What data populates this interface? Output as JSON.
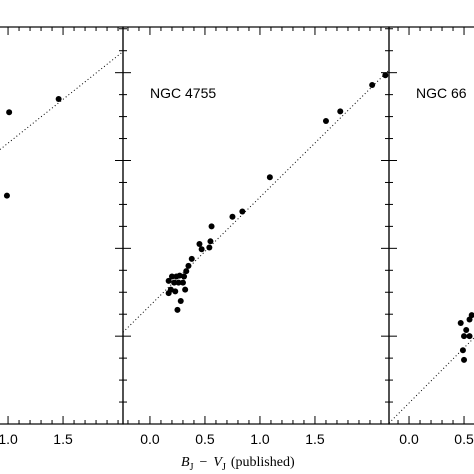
{
  "chart_data": [
    {
      "type": "scatter",
      "xlim": [
        -0.373,
        2.045
      ],
      "ylim": [
        -1,
        3.52
      ],
      "xticks": [
        {
          "value": 1,
          "label": "1.0"
        },
        {
          "value": 1.5,
          "label": "1.5"
        }
      ],
      "xminorticks": [
        0.6,
        0.7,
        0.8,
        0.9,
        1.1,
        1.2,
        1.3,
        1.4,
        1.6,
        1.7,
        1.8,
        1.9,
        2.0
      ],
      "yticks": [
        0,
        1,
        2,
        3
      ],
      "yminorticks": [
        -0.75,
        -0.5,
        -0.25,
        0.25,
        0.5,
        0.75,
        1.25,
        1.5,
        1.75,
        2.25,
        2.5,
        2.75,
        3.25,
        3.5
      ],
      "color": "#000000",
      "x": [
        1.46,
        1.01,
        0.99
      ],
      "y": [
        2.7,
        2.55,
        1.6
      ],
      "ref_line": {
        "x": [
          0.927,
          2.045
        ],
        "y": [
          2.125,
          3.24
        ]
      }
    },
    {
      "type": "scatter",
      "title": "NGC 4755",
      "xlim": [
        -0.245,
        2.173
      ],
      "ylim": [
        -1,
        3.52
      ],
      "xticks": [
        {
          "value": 0,
          "label": "0.0"
        },
        {
          "value": 0.5,
          "label": "0.5"
        },
        {
          "value": 1,
          "label": "1.0"
        },
        {
          "value": 1.5,
          "label": "1.5"
        }
      ],
      "xminorticks": [
        -0.2,
        -0.1,
        0.1,
        0.2,
        0.3,
        0.4,
        0.6,
        0.7,
        0.8,
        0.9,
        1.1,
        1.2,
        1.3,
        1.4,
        1.6,
        1.7,
        1.8,
        1.9,
        2.0,
        2.1
      ],
      "yticks": [
        0,
        1,
        2,
        3
      ],
      "yminorticks": [
        -0.75,
        -0.5,
        -0.25,
        0.25,
        0.5,
        0.75,
        1.25,
        1.5,
        1.75,
        2.25,
        2.5,
        2.75,
        3.25,
        3.5
      ],
      "xlabel_parts": [
        "B",
        "J",
        "−",
        "V",
        "J",
        "(published)"
      ],
      "color": "#000000",
      "x": [
        2.14,
        2.02,
        1.73,
        1.6,
        1.09,
        0.84,
        0.75,
        0.56,
        0.55,
        0.45,
        0.54,
        0.47,
        0.38,
        0.35,
        0.33,
        0.31,
        0.27,
        0.24,
        0.2,
        0.17,
        0.22,
        0.26,
        0.3,
        0.19,
        0.17,
        0.32,
        0.28,
        0.25,
        0.23
      ],
      "y": [
        2.97,
        2.86,
        2.56,
        2.45,
        1.81,
        1.42,
        1.36,
        1.25,
        1.08,
        1.05,
        1.01,
        0.99,
        0.88,
        0.8,
        0.74,
        0.68,
        0.69,
        0.68,
        0.68,
        0.63,
        0.61,
        0.61,
        0.61,
        0.53,
        0.49,
        0.53,
        0.4,
        0.3,
        0.51
      ],
      "ref_line": {
        "x": [
          -0.245,
          2.173
        ],
        "y": [
          0.045,
          3.03
        ]
      }
    },
    {
      "type": "scatter",
      "title": "NGC 66",
      "xlim": [
        -0.182,
        2.236
      ],
      "ylim": [
        -1,
        3.52
      ],
      "xticks": [
        {
          "value": 0,
          "label": "0.0"
        },
        {
          "value": 0.5,
          "label": "0.5"
        }
      ],
      "xminorticks": [
        -0.1,
        0.1,
        0.2,
        0.3,
        0.4,
        0.6
      ],
      "yticks": [
        0,
        1,
        2,
        3
      ],
      "yminorticks": [
        -0.75,
        -0.5,
        -0.25,
        0.25,
        0.5,
        0.75,
        1.25,
        1.5,
        1.75,
        2.25,
        2.5,
        2.75,
        3.25,
        3.5
      ],
      "color": "#000000",
      "x": [
        0.47,
        0.55,
        0.57,
        0.55,
        0.5,
        0.49,
        0.5,
        0.52
      ],
      "y": [
        0.15,
        0.19,
        0.24,
        0.0,
        0.0,
        -0.16,
        -0.27,
        0.07
      ],
      "ref_line": {
        "x": [
          -0.182,
          0.59
        ],
        "y": [
          -0.99,
          -0.02
        ]
      }
    }
  ]
}
